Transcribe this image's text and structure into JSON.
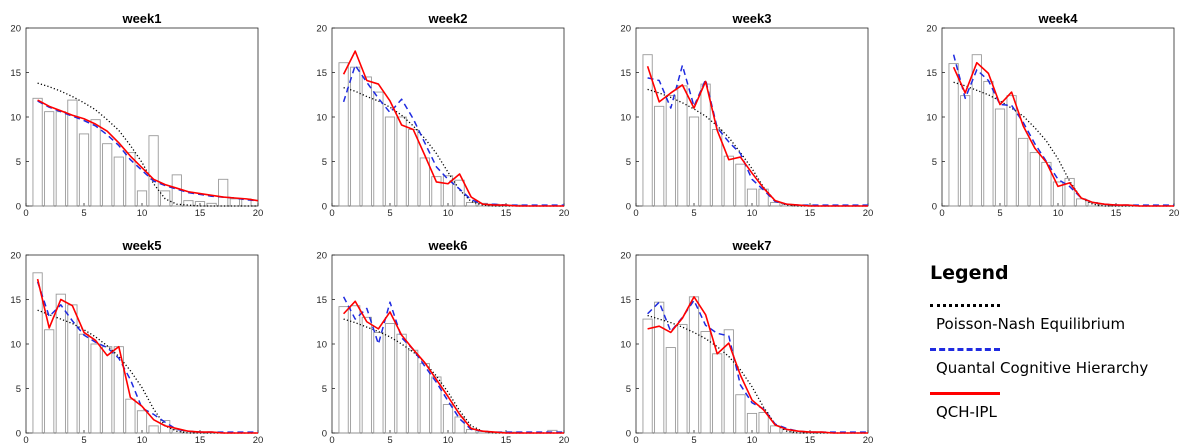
{
  "legend": {
    "title": "Legend",
    "entries": [
      {
        "label": "Poisson-Nash Equilibrium",
        "color": "#000000",
        "style": "dotted"
      },
      {
        "label": "Quantal Cognitive Hierarchy",
        "color": "#1f2be0",
        "style": "dashed"
      },
      {
        "label": "QCH-IPL",
        "color": "#ff0000",
        "style": "solid"
      }
    ]
  },
  "chart_data": [
    {
      "type": "bar",
      "title": "week1",
      "xlim": [
        0,
        20
      ],
      "ylim": [
        0,
        20
      ],
      "xticks": [
        0,
        5,
        10,
        15,
        20
      ],
      "yticks": [
        0,
        5,
        10,
        15,
        20
      ],
      "x": [
        1,
        2,
        3,
        4,
        5,
        6,
        7,
        8,
        9,
        10,
        11,
        12,
        13,
        14,
        15,
        16,
        17,
        18,
        19,
        20
      ],
      "bars": [
        12.1,
        10.6,
        10.6,
        11.9,
        8.1,
        9.7,
        7.0,
        5.5,
        6.0,
        1.7,
        7.9,
        1.7,
        3.5,
        0.6,
        0.5,
        0.3,
        3.0,
        0.8,
        0.8,
        0
      ],
      "series": [
        {
          "legend_index": 0,
          "values": [
            13.8,
            13.4,
            12.9,
            12.3,
            11.6,
            10.8,
            9.7,
            8.5,
            6.8,
            4.9,
            2.5,
            0.8,
            0.2,
            0.1,
            0.0,
            0.0,
            0.0,
            0.0,
            0.0,
            0.0
          ]
        },
        {
          "legend_index": 1,
          "values": [
            11.8,
            11.1,
            10.6,
            10.1,
            9.6,
            9.0,
            8.0,
            6.8,
            5.2,
            4.0,
            2.8,
            2.3,
            1.9,
            1.5,
            1.3,
            1.1,
            1.0,
            0.9,
            0.7,
            0.6
          ]
        },
        {
          "legend_index": 2,
          "values": [
            11.9,
            11.2,
            10.7,
            10.2,
            9.8,
            9.2,
            8.4,
            7.1,
            5.6,
            4.3,
            3.0,
            2.4,
            2.0,
            1.6,
            1.4,
            1.2,
            1.0,
            0.9,
            0.8,
            0.6
          ]
        }
      ]
    },
    {
      "type": "bar",
      "title": "week2",
      "xlim": [
        0,
        20
      ],
      "ylim": [
        0,
        20
      ],
      "xticks": [
        0,
        5,
        10,
        15,
        20
      ],
      "yticks": [
        0,
        5,
        10,
        15,
        20
      ],
      "x": [
        1,
        2,
        3,
        4,
        5,
        6,
        7,
        8,
        9,
        10,
        11,
        12,
        13,
        14,
        15,
        16,
        17,
        18,
        19,
        20
      ],
      "bars": [
        16.1,
        15.6,
        14.5,
        12.8,
        10.0,
        10.0,
        8.6,
        5.4,
        3.3,
        3.4,
        2.9,
        0.4,
        0.3,
        0.2,
        0.1,
        0.1,
        0,
        0,
        0,
        0
      ],
      "series": [
        {
          "legend_index": 0,
          "values": [
            13.3,
            12.9,
            12.3,
            11.8,
            11.1,
            10.2,
            9.0,
            7.6,
            5.9,
            3.8,
            1.8,
            0.5,
            0.1,
            0.0,
            0.0,
            0.0,
            0.0,
            0.0,
            0.0,
            0.0
          ]
        },
        {
          "legend_index": 1,
          "values": [
            11.7,
            15.8,
            13.9,
            12.1,
            10.5,
            12.0,
            9.8,
            7.1,
            4.4,
            3.0,
            1.9,
            0.7,
            0.2,
            0.2,
            0.1,
            0.1,
            0.1,
            0.1,
            0.1,
            0.1
          ]
        },
        {
          "legend_index": 2,
          "values": [
            14.8,
            17.4,
            14.1,
            13.7,
            11.8,
            9.1,
            8.6,
            5.7,
            2.7,
            2.5,
            3.6,
            1.0,
            0.2,
            0.1,
            0.1,
            0.0,
            0.0,
            0.0,
            0.0,
            0.0
          ]
        }
      ]
    },
    {
      "type": "bar",
      "title": "week3",
      "xlim": [
        0,
        20
      ],
      "ylim": [
        0,
        20
      ],
      "xticks": [
        0,
        5,
        10,
        15,
        20
      ],
      "yticks": [
        0,
        5,
        10,
        15,
        20
      ],
      "x": [
        1,
        2,
        3,
        4,
        5,
        6,
        7,
        8,
        9,
        10,
        11,
        12,
        13,
        14,
        15,
        16,
        17,
        18,
        19,
        20
      ],
      "bars": [
        17.0,
        11.2,
        12.4,
        13.5,
        10.0,
        13.7,
        8.6,
        5.6,
        4.7,
        1.9,
        1.9,
        0.4,
        0.2,
        0.1,
        0.1,
        0,
        0,
        0,
        0,
        0
      ],
      "series": [
        {
          "legend_index": 0,
          "values": [
            13.1,
            12.7,
            12.2,
            11.6,
            10.9,
            10.1,
            9.0,
            7.7,
            6.0,
            4.2,
            2.1,
            0.6,
            0.1,
            0.0,
            0.0,
            0.0,
            0.0,
            0.0,
            0.0,
            0.0
          ]
        },
        {
          "legend_index": 1,
          "values": [
            14.4,
            14.1,
            11.0,
            15.8,
            11.2,
            14.2,
            8.8,
            7.2,
            5.9,
            3.0,
            1.8,
            0.5,
            0.2,
            0.1,
            0.1,
            0.1,
            0.1,
            0.1,
            0.1,
            0.1
          ]
        },
        {
          "legend_index": 2,
          "values": [
            15.7,
            11.7,
            12.7,
            13.6,
            11.0,
            14.0,
            8.5,
            5.2,
            5.5,
            3.7,
            2.0,
            0.6,
            0.2,
            0.1,
            0.0,
            0.0,
            0.0,
            0.0,
            0.0,
            0.0
          ]
        }
      ]
    },
    {
      "type": "bar",
      "title": "week4",
      "xlim": [
        0,
        20
      ],
      "ylim": [
        0,
        20
      ],
      "xticks": [
        0,
        5,
        10,
        15,
        20
      ],
      "yticks": [
        0,
        5,
        10,
        15,
        20
      ],
      "x": [
        1,
        2,
        3,
        4,
        5,
        6,
        7,
        8,
        9,
        10,
        11,
        12,
        13,
        14,
        15,
        16,
        17,
        18,
        19,
        20
      ],
      "bars": [
        16.0,
        12.4,
        17.0,
        14.0,
        10.9,
        12.4,
        7.6,
        6.0,
        4.9,
        2.7,
        3.1,
        0.8,
        0.4,
        0.2,
        0.1,
        0.1,
        0,
        0,
        0,
        0
      ],
      "series": [
        {
          "legend_index": 0,
          "values": [
            13.9,
            13.5,
            13.0,
            12.5,
            11.8,
            11.0,
            10.1,
            8.8,
            7.3,
            5.3,
            2.8,
            0.9,
            0.2,
            0.0,
            0.0,
            0.0,
            0.0,
            0.0,
            0.0,
            0.0
          ]
        },
        {
          "legend_index": 1,
          "values": [
            17.0,
            12.1,
            15.3,
            14.1,
            11.4,
            11.3,
            9.4,
            7.0,
            5.0,
            3.0,
            2.2,
            0.9,
            0.4,
            0.2,
            0.1,
            0.1,
            0.1,
            0.1,
            0.1,
            0.1
          ]
        },
        {
          "legend_index": 2,
          "values": [
            15.6,
            12.7,
            16.1,
            14.9,
            11.4,
            12.8,
            9.0,
            6.5,
            4.9,
            2.2,
            2.6,
            0.9,
            0.4,
            0.2,
            0.1,
            0.1,
            0.0,
            0.0,
            0.0,
            0.0
          ]
        }
      ]
    },
    {
      "type": "bar",
      "title": "week5",
      "xlim": [
        0,
        20
      ],
      "ylim": [
        0,
        20
      ],
      "xticks": [
        0,
        5,
        10,
        15,
        20
      ],
      "yticks": [
        0,
        5,
        10,
        15,
        20
      ],
      "x": [
        1,
        2,
        3,
        4,
        5,
        6,
        7,
        8,
        9,
        10,
        11,
        12,
        13,
        14,
        15,
        16,
        17,
        18,
        19,
        20
      ],
      "bars": [
        18.0,
        11.6,
        15.6,
        14.4,
        11.1,
        10.0,
        9.7,
        9.7,
        3.8,
        2.5,
        0.8,
        1.4,
        0.4,
        0.2,
        0.1,
        0.1,
        0,
        0,
        0,
        0
      ],
      "series": [
        {
          "legend_index": 0,
          "values": [
            13.8,
            13.3,
            12.8,
            12.3,
            11.6,
            10.8,
            9.8,
            8.6,
            7.0,
            5.1,
            2.7,
            0.8,
            0.2,
            0.0,
            0.0,
            0.0,
            0.0,
            0.0,
            0.0,
            0.0
          ]
        },
        {
          "legend_index": 1,
          "values": [
            17.0,
            13.1,
            14.4,
            12.6,
            11.0,
            10.2,
            9.6,
            8.4,
            6.0,
            2.8,
            2.1,
            1.2,
            0.4,
            0.2,
            0.1,
            0.1,
            0.1,
            0.1,
            0.1,
            0.1
          ]
        },
        {
          "legend_index": 2,
          "values": [
            17.3,
            11.8,
            15.0,
            14.3,
            11.3,
            10.4,
            8.7,
            9.7,
            4.0,
            3.0,
            1.5,
            0.8,
            0.5,
            0.2,
            0.1,
            0.1,
            0.0,
            0.0,
            0.0,
            0.0
          ]
        }
      ]
    },
    {
      "type": "bar",
      "title": "week6",
      "xlim": [
        0,
        20
      ],
      "ylim": [
        0,
        20
      ],
      "xticks": [
        0,
        5,
        10,
        15,
        20
      ],
      "yticks": [
        0,
        5,
        10,
        15,
        20
      ],
      "x": [
        1,
        2,
        3,
        4,
        5,
        6,
        7,
        8,
        9,
        10,
        11,
        12,
        13,
        14,
        15,
        16,
        17,
        18,
        19,
        20
      ],
      "bars": [
        14.2,
        14.3,
        13.0,
        11.3,
        12.3,
        11.1,
        9.3,
        7.8,
        6.3,
        3.2,
        1.8,
        0.4,
        0.2,
        0.1,
        0.1,
        0.1,
        0,
        0,
        0.3,
        0
      ],
      "series": [
        {
          "legend_index": 0,
          "values": [
            12.8,
            12.4,
            11.9,
            11.4,
            10.8,
            10.0,
            9.1,
            7.9,
            6.4,
            4.6,
            2.5,
            0.8,
            0.2,
            0.0,
            0.0,
            0.0,
            0.0,
            0.0,
            0.0,
            0.0
          ]
        },
        {
          "legend_index": 1,
          "values": [
            15.3,
            12.8,
            14.0,
            10.0,
            14.7,
            10.7,
            9.4,
            7.5,
            5.7,
            3.6,
            1.6,
            0.4,
            0.2,
            0.1,
            0.1,
            0.1,
            0.1,
            0.1,
            0.1,
            0.1
          ]
        },
        {
          "legend_index": 2,
          "values": [
            13.4,
            14.8,
            12.5,
            11.7,
            13.6,
            11.0,
            9.4,
            7.9,
            6.0,
            4.1,
            2.1,
            0.5,
            0.2,
            0.1,
            0.0,
            0.0,
            0.0,
            0.0,
            0.0,
            0.0
          ]
        }
      ]
    },
    {
      "type": "bar",
      "title": "week7",
      "xlim": [
        0,
        20
      ],
      "ylim": [
        0,
        20
      ],
      "xticks": [
        0,
        5,
        10,
        15,
        20
      ],
      "yticks": [
        0,
        5,
        10,
        15,
        20
      ],
      "x": [
        1,
        2,
        3,
        4,
        5,
        6,
        7,
        8,
        9,
        10,
        11,
        12,
        13,
        14,
        15,
        16,
        17,
        18,
        19,
        20
      ],
      "bars": [
        12.8,
        14.7,
        9.6,
        12.2,
        15.3,
        11.4,
        8.9,
        11.6,
        4.3,
        2.2,
        2.3,
        0.8,
        0.4,
        0.2,
        0.1,
        0.1,
        0,
        0,
        0,
        0
      ],
      "series": [
        {
          "legend_index": 0,
          "values": [
            13.2,
            12.8,
            12.4,
            11.9,
            11.3,
            10.6,
            9.7,
            8.6,
            7.1,
            5.2,
            2.9,
            1.0,
            0.2,
            0.0,
            0.0,
            0.0,
            0.0,
            0.0,
            0.0,
            0.0
          ]
        },
        {
          "legend_index": 1,
          "values": [
            13.4,
            14.7,
            11.4,
            13.0,
            14.9,
            12.1,
            11.2,
            10.9,
            5.4,
            3.4,
            2.7,
            1.0,
            0.5,
            0.2,
            0.1,
            0.1,
            0.1,
            0.1,
            0.1,
            0.1
          ]
        },
        {
          "legend_index": 2,
          "values": [
            11.7,
            12.0,
            11.3,
            12.9,
            15.3,
            13.3,
            8.9,
            10.1,
            6.5,
            3.7,
            2.6,
            0.9,
            0.4,
            0.2,
            0.1,
            0.1,
            0.0,
            0.0,
            0.0,
            0.0
          ]
        }
      ]
    }
  ]
}
